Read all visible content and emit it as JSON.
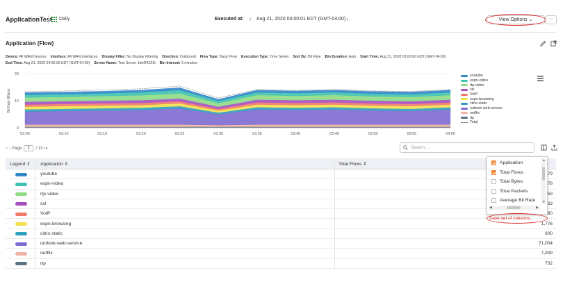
{
  "header": {
    "title": "ApplicationTest",
    "schedule": "Daily",
    "executed_label": "Executed at:",
    "executed_value": "Aug 21, 2020 04:00:01 EDT (GMT-04:00)",
    "view_options": "View Options",
    "more": "···"
  },
  "section": {
    "title": "Application (Flow)"
  },
  "meta_line1": [
    {
      "label": "Device:",
      "value": "All WAN Devices"
    },
    {
      "label": "Interface:",
      "value": "All WAN Interfaces"
    },
    {
      "label": "Display Filter:",
      "value": "No Display Filtering"
    },
    {
      "label": "Direction:",
      "value": "Outbound"
    },
    {
      "label": "Flow Type:",
      "value": "Basic Flow"
    },
    {
      "label": "Execution Type:",
      "value": "Time Series"
    },
    {
      "label": "Sort By:",
      "value": "Bit Rate"
    },
    {
      "label": "Bin Duration:",
      "value": "Auto"
    },
    {
      "label": "Start Time:",
      "value": "Aug 21, 2020 03:00:00 EDT (GMT-04:00)"
    }
  ],
  "meta_line2": [
    {
      "label": "End Time:",
      "value": "Aug 21, 2020 04:00:00 EDT (GMT-04:00)"
    },
    {
      "label": "Server Name:",
      "value": "Test Server 1def24323t"
    },
    {
      "label": "Bin Interval:",
      "value": "5 minutes"
    }
  ],
  "chart_data": {
    "type": "area",
    "ylabel": "Bit Rate (Mbps)",
    "ylim": [
      0,
      20
    ],
    "yticks": [
      "20",
      "10",
      "0"
    ],
    "x": [
      "03:05",
      "03:10",
      "03:15",
      "03:20",
      "03:25",
      "03:30",
      "03:35",
      "03:40",
      "03:45",
      "03:50",
      "03:55",
      "04:00"
    ],
    "grid": true,
    "legend_position": "right",
    "series": [
      {
        "name": "rtp",
        "color": "#5b7380",
        "values": [
          0.4,
          0.4,
          0.4,
          0.4,
          0.4,
          0.4,
          0.4,
          0.4,
          0.4,
          0.4,
          0.4,
          0.4
        ]
      },
      {
        "name": "netflix",
        "color": "#f2b3a5",
        "values": [
          0.8,
          0.8,
          0.8,
          0.8,
          0.8,
          0.6,
          0.8,
          0.8,
          0.8,
          0.8,
          0.8,
          0.8
        ]
      },
      {
        "name": "outlook-web-service",
        "color": "#7d6bd1",
        "values": [
          4.8,
          5.0,
          5.2,
          5.4,
          6.0,
          4.0,
          5.6,
          5.4,
          5.6,
          5.2,
          5.0,
          5.6
        ]
      },
      {
        "name": "citrix-static",
        "color": "#2d9fbf",
        "values": [
          0.8,
          0.8,
          0.8,
          0.8,
          0.8,
          0.6,
          0.8,
          0.8,
          0.8,
          0.8,
          0.8,
          0.8
        ]
      },
      {
        "name": "espn-browsing",
        "color": "#f4e04d",
        "values": [
          1.0,
          1.0,
          1.0,
          1.0,
          1.0,
          0.8,
          1.0,
          1.0,
          1.0,
          1.0,
          1.0,
          1.0
        ]
      },
      {
        "name": "VoIP",
        "color": "#ef7a6a",
        "values": [
          0.8,
          0.8,
          0.8,
          0.8,
          0.8,
          0.6,
          0.8,
          0.8,
          0.8,
          0.8,
          0.8,
          0.8
        ]
      },
      {
        "name": "ssl",
        "color": "#a74ec2",
        "values": [
          1.0,
          1.0,
          1.0,
          1.0,
          1.0,
          0.8,
          1.0,
          1.0,
          1.0,
          1.0,
          1.0,
          1.0
        ]
      },
      {
        "name": "rtp-video",
        "color": "#8edc86",
        "values": [
          1.6,
          1.6,
          1.7,
          1.8,
          1.9,
          1.3,
          1.7,
          1.6,
          1.7,
          1.6,
          1.6,
          1.7
        ]
      },
      {
        "name": "espn-video",
        "color": "#3ec3b0",
        "values": [
          1.0,
          1.0,
          1.0,
          1.1,
          1.2,
          0.8,
          1.0,
          1.0,
          1.0,
          1.0,
          1.0,
          1.0
        ]
      },
      {
        "name": "youtube",
        "color": "#2f86c9",
        "values": [
          0.8,
          0.8,
          0.8,
          0.8,
          0.9,
          0.6,
          0.8,
          0.8,
          0.8,
          0.8,
          0.8,
          0.8
        ]
      }
    ],
    "total": {
      "name": "Total",
      "values": [
        13.4,
        13.6,
        14.0,
        14.4,
        15.4,
        11.0,
        14.2,
        13.8,
        14.2,
        13.6,
        13.4,
        14.2
      ]
    }
  },
  "legend_order": [
    "youtube",
    "espn-video",
    "rtp-video",
    "ssl",
    "VoIP",
    "espn-browsing",
    "citrix-static",
    "outlook-web-service",
    "netflix",
    "rtp",
    "Total"
  ],
  "pager": {
    "page_label": "Page",
    "page_value": "1",
    "of_label": "/ 13"
  },
  "search": {
    "placeholder": "Search..."
  },
  "table": {
    "headers": {
      "legend": "Legend",
      "application": "Application",
      "total_flows": "Total Flows"
    },
    "rows": [
      {
        "app": "youtube",
        "color": "#2f86c9",
        "flows": "79"
      },
      {
        "app": "espn-video",
        "color": "#3ec3b0",
        "flows": "78"
      },
      {
        "app": "rtp-video",
        "color": "#8edc86",
        "flows": "59"
      },
      {
        "app": "ssl",
        "color": "#a74ec2",
        "flows": "33"
      },
      {
        "app": "VoIP",
        "color": "#ef7a6a",
        "flows": "80"
      },
      {
        "app": "espn-browsing",
        "color": "#f4e04d",
        "flows": "1,776"
      },
      {
        "app": "citrix-static",
        "color": "#2d9fbf",
        "flows": "600"
      },
      {
        "app": "outlook-web-service",
        "color": "#7d6bd1",
        "flows": "71,004"
      },
      {
        "app": "netflix",
        "color": "#f2b3a5",
        "flows": "7,939"
      },
      {
        "app": "rtp",
        "color": "#5b7380",
        "flows": "732"
      }
    ]
  },
  "column_picker": {
    "items": [
      {
        "label": "Application",
        "checked": true
      },
      {
        "label": "Total Flows",
        "checked": true
      },
      {
        "label": "Total Bytes",
        "checked": false
      },
      {
        "label": "Total Packets",
        "checked": false
      },
      {
        "label": "Average Bit Rate",
        "checked": false
      }
    ],
    "save_label": "Save set of columns"
  },
  "colors": {
    "accent": "#f08a3c",
    "annotation": "#d9231f",
    "header_bg": "#eef0f6"
  }
}
